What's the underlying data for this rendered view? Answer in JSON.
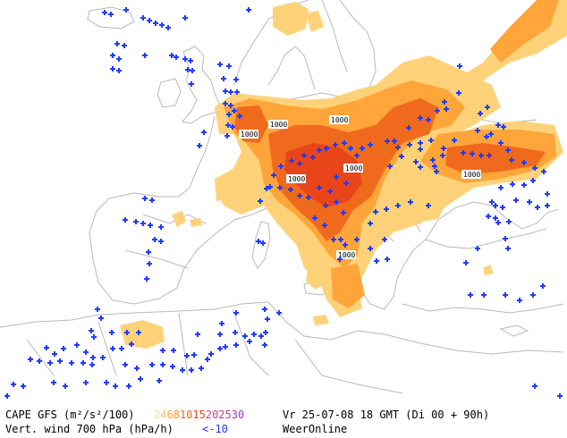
{
  "map": {
    "contour_labels": [
      "1000",
      "1000",
      "1000",
      "1000",
      "1000",
      "1000",
      "1000"
    ]
  },
  "legend": {
    "cape_label": "CAPE GFS (m²/s²/100)",
    "cape_scale": [
      {
        "text": "2",
        "color": "#ffd98c"
      },
      {
        "text": "4",
        "color": "#ffc060"
      },
      {
        "text": "6",
        "color": "#ffa540"
      },
      {
        "text": "8",
        "color": "#ff8a30"
      },
      {
        "text": "10",
        "color": "#f56a20"
      },
      {
        "text": "15",
        "color": "#e84a18"
      },
      {
        "text": "20",
        "color": "#e0407a"
      },
      {
        "text": "25",
        "color": "#c03aa8"
      },
      {
        "text": "30",
        "color": "#9a3ac8"
      }
    ],
    "valid_time": "Vr 25-07-08 18 GMT (Di 00 + 90h)",
    "wind_label": "Vert. wind 700 hPa (hPa/h)",
    "wind_threshold": "<-10",
    "wind_color": "#1f3cff",
    "source": "WeerOnline"
  },
  "colors": {
    "coast": "#b9b9b9",
    "cape_low": "#ffd27a",
    "cape_mid": "#ffa53a",
    "cape_high": "#f06a1e",
    "cape_peak": "#e8461a",
    "cross": "#1f3cff"
  }
}
